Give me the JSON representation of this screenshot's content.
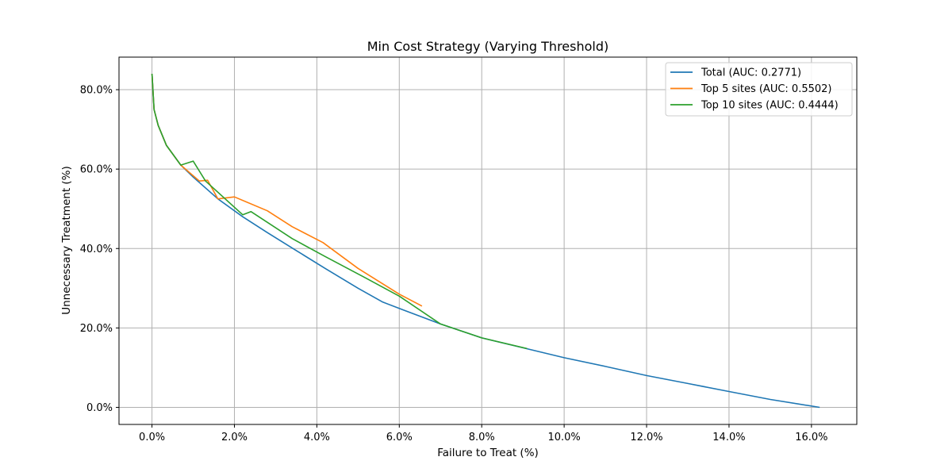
{
  "chart_data": {
    "type": "line",
    "title": "Min Cost Strategy (Varying Threshold)",
    "xlabel": "Failure to Treat (%)",
    "ylabel": "Unnecessary Treatment (%)",
    "xlim": [
      -0.8,
      17.1
    ],
    "ylim": [
      -4.3,
      88.2
    ],
    "xticks": [
      0,
      2,
      4,
      6,
      8,
      10,
      12,
      14,
      16
    ],
    "xtick_labels": [
      "0.0%",
      "2.0%",
      "4.0%",
      "6.0%",
      "8.0%",
      "10.0%",
      "12.0%",
      "14.0%",
      "16.0%"
    ],
    "yticks": [
      0,
      20,
      40,
      60,
      80
    ],
    "ytick_labels": [
      "0.0%",
      "20.0%",
      "40.0%",
      "60.0%",
      "80.0%"
    ],
    "grid": true,
    "legend_position": "top-right",
    "series": [
      {
        "name": "Total (AUC: 0.2771)",
        "color": "#1f77b4",
        "x": [
          0.0,
          0.05,
          0.15,
          0.35,
          0.7,
          1.0,
          1.6,
          2.2,
          2.8,
          3.5,
          4.2,
          5.0,
          5.6,
          6.1,
          7.0,
          8.0,
          9.0,
          10.0,
          11.0,
          12.0,
          13.0,
          14.0,
          15.0,
          16.2
        ],
        "y": [
          84.0,
          75.0,
          71.0,
          66.0,
          61.0,
          58.0,
          52.5,
          48.0,
          44.0,
          39.5,
          35.0,
          30.0,
          26.5,
          24.5,
          21.0,
          17.5,
          15.0,
          12.5,
          10.3,
          8.0,
          6.0,
          4.0,
          2.0,
          0.0
        ]
      },
      {
        "name": "Top 5 sites (AUC: 0.5502)",
        "color": "#ff7f0e",
        "x": [
          0.0,
          0.05,
          0.15,
          0.35,
          0.7,
          1.15,
          1.35,
          1.6,
          2.0,
          2.8,
          3.4,
          4.15,
          5.0,
          6.0,
          6.55
        ],
        "y": [
          84.0,
          75.0,
          71.0,
          66.0,
          61.0,
          57.0,
          57.2,
          52.5,
          53.0,
          49.5,
          45.5,
          41.5,
          35.0,
          28.5,
          25.5
        ]
      },
      {
        "name": "Top 10 sites (AUC: 0.4444)",
        "color": "#2ca02c",
        "x": [
          0.0,
          0.05,
          0.15,
          0.35,
          0.7,
          1.0,
          1.3,
          2.2,
          2.4,
          3.4,
          4.2,
          5.2,
          6.0,
          7.0,
          8.0,
          9.1
        ],
        "y": [
          84.0,
          75.0,
          71.0,
          66.0,
          61.0,
          62.0,
          57.0,
          48.5,
          49.3,
          42.5,
          38.0,
          32.5,
          28.0,
          21.0,
          17.5,
          14.8
        ]
      }
    ]
  }
}
